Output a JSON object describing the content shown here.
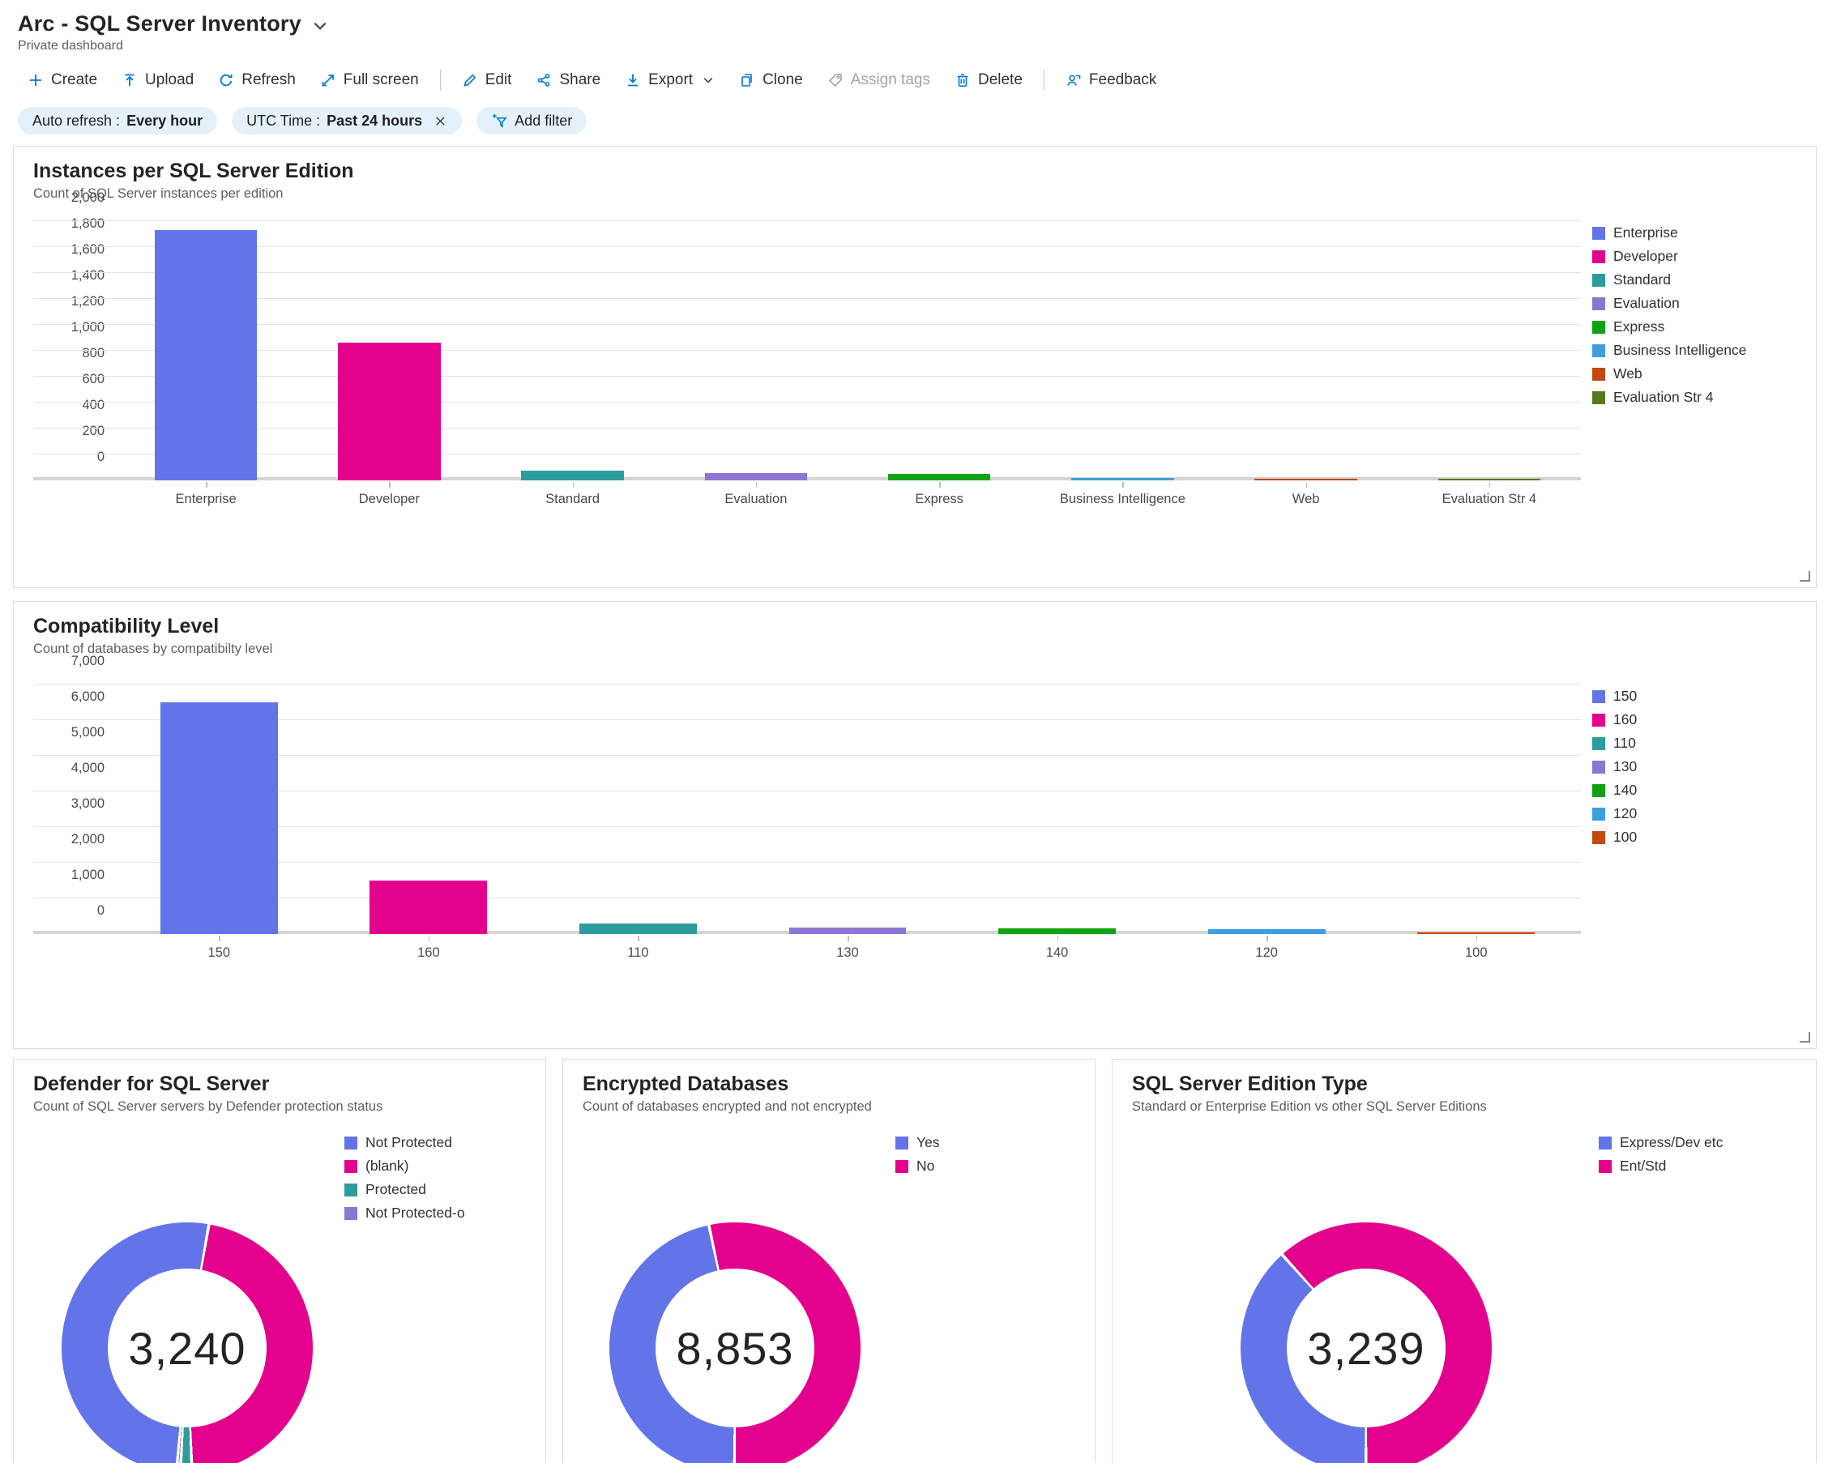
{
  "header": {
    "title": "Arc - SQL Server Inventory",
    "subtitle": "Private dashboard"
  },
  "toolbar": {
    "items": {
      "create": "Create",
      "upload": "Upload",
      "refresh": "Refresh",
      "fullscreen": "Full screen",
      "edit": "Edit",
      "share": "Share",
      "export": "Export",
      "clone": "Clone",
      "assign_tags": "Assign tags",
      "delete": "Delete",
      "feedback": "Feedback"
    }
  },
  "filters": {
    "auto_refresh_label": "Auto refresh :",
    "auto_refresh_value": "Every hour",
    "utc_label": "UTC Time :",
    "utc_value": "Past 24 hours",
    "add_filter_label": "Add filter"
  },
  "colors": {
    "accent": "#0078D4",
    "blue": "#6374E8",
    "magenta": "#E3008C"
  },
  "chart_data": [
    {
      "id": "editions",
      "type": "bar",
      "title": "Instances per SQL Server Edition",
      "subtitle": "Count of SQL Server instances per edition",
      "categories": [
        "Enterprise",
        "Developer",
        "Standard",
        "Evaluation",
        "Express",
        "Business Intelligence",
        "Web",
        "Evaluation Str 4"
      ],
      "values": [
        1930,
        1060,
        75,
        55,
        50,
        18,
        12,
        12
      ],
      "colors": [
        "#6374E8",
        "#E3008C",
        "#2C9C9C",
        "#8B77D3",
        "#12A112",
        "#3F9FDE",
        "#C2490F",
        "#57791F"
      ],
      "ylim": [
        0,
        2000
      ],
      "yticks": [
        "0",
        "200",
        "400",
        "600",
        "800",
        "1,000",
        "1,200",
        "1,400",
        "1,600",
        "1,800",
        "2,000"
      ],
      "grid": true,
      "legend_position": "right",
      "legend": [
        {
          "label": "Enterprise",
          "color": "#6374E8"
        },
        {
          "label": "Developer",
          "color": "#E3008C"
        },
        {
          "label": "Standard",
          "color": "#2C9C9C"
        },
        {
          "label": "Evaluation",
          "color": "#8B77D3"
        },
        {
          "label": "Express",
          "color": "#12A112"
        },
        {
          "label": "Business Intelligence",
          "color": "#3F9FDE"
        },
        {
          "label": "Web",
          "color": "#C2490F"
        },
        {
          "label": "Evaluation Str 4",
          "color": "#57791F"
        }
      ]
    },
    {
      "id": "compatibility",
      "type": "bar",
      "title": "Compatibility Level",
      "subtitle": "Count of databases by compatibilty level",
      "categories": [
        "150",
        "160",
        "110",
        "130",
        "140",
        "120",
        "100"
      ],
      "values": [
        6500,
        1500,
        300,
        180,
        160,
        140,
        50
      ],
      "colors": [
        "#6374E8",
        "#E3008C",
        "#2C9C9C",
        "#8B77D3",
        "#12A112",
        "#3F9FDE",
        "#C2490F"
      ],
      "ylim": [
        0,
        7000
      ],
      "yticks": [
        "0",
        "1,000",
        "2,000",
        "3,000",
        "4,000",
        "5,000",
        "6,000",
        "7,000"
      ],
      "grid": true,
      "legend_position": "right",
      "legend": [
        {
          "label": "150",
          "color": "#6374E8"
        },
        {
          "label": "160",
          "color": "#E3008C"
        },
        {
          "label": "110",
          "color": "#2C9C9C"
        },
        {
          "label": "130",
          "color": "#8B77D3"
        },
        {
          "label": "140",
          "color": "#12A112"
        },
        {
          "label": "120",
          "color": "#3F9FDE"
        },
        {
          "label": "100",
          "color": "#C2490F"
        }
      ]
    },
    {
      "id": "defender",
      "type": "donut",
      "title": "Defender for SQL Server",
      "subtitle": "Count of SQL Server servers by Defender protection status",
      "center_total": "3,240",
      "start_angle": 10,
      "segments": [
        {
          "label": "(blank)",
          "percent": 46.6,
          "color": "#E3008C"
        },
        {
          "label": "Protected",
          "percent": 1.5,
          "color": "#2C9C9C"
        },
        {
          "label": "Not Protected-o",
          "percent": 0.5,
          "color": "#8B77D3"
        },
        {
          "label": "Not Protected",
          "percent": 51.4,
          "color": "#6374E8"
        }
      ],
      "legend": [
        {
          "label": "Not Protected",
          "color": "#6374E8"
        },
        {
          "label": "(blank)",
          "color": "#E3008C"
        },
        {
          "label": "Protected",
          "color": "#2C9C9C"
        },
        {
          "label": "Not Protected-o",
          "color": "#8B77D3"
        }
      ]
    },
    {
      "id": "encrypted",
      "type": "donut",
      "title": "Encrypted Databases",
      "subtitle": "Count of databases encrypted and not encrypted",
      "center_total": "8,853",
      "start_angle": 348,
      "segments": [
        {
          "label": "No",
          "percent": 53.4,
          "color": "#E3008C"
        },
        {
          "label": "Yes",
          "percent": 46.6,
          "color": "#6374E8"
        }
      ],
      "legend": [
        {
          "label": "Yes",
          "color": "#6374E8"
        },
        {
          "label": "No",
          "color": "#E3008C"
        }
      ]
    },
    {
      "id": "edition_type",
      "type": "donut",
      "title": "SQL Server Edition Type",
      "subtitle": "Standard or Enterprise Edition vs other SQL Server Editions",
      "center_total": "3,239",
      "start_angle": 318,
      "segments": [
        {
          "label": "Ent/Std",
          "percent": 61.7,
          "color": "#E3008C"
        },
        {
          "label": "Express/Dev etc",
          "percent": 38.3,
          "color": "#6374E8"
        }
      ],
      "legend": [
        {
          "label": "Express/Dev etc",
          "color": "#6374E8"
        },
        {
          "label": "Ent/Std",
          "color": "#E3008C"
        }
      ]
    }
  ]
}
